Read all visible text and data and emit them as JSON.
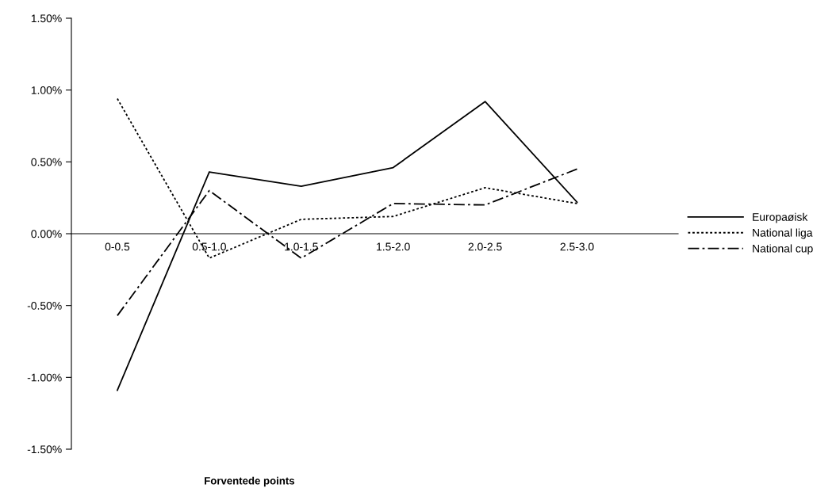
{
  "chart_data": {
    "type": "line",
    "annotations": [
      "Forventede points"
    ],
    "categories": [
      "0-0.5",
      "0.5-1.0",
      "1.0-1.5",
      "1.5-2.0",
      "2.0-2.5",
      "2.5-3.0"
    ],
    "series": [
      {
        "name": "Europaøisk",
        "color": "#000000",
        "line_style": "solid",
        "values": [
          -1.09,
          0.43,
          0.33,
          0.46,
          0.92,
          0.22
        ]
      },
      {
        "name": "National liga",
        "color": "#000000",
        "line_style": "dotted",
        "values": [
          0.94,
          -0.17,
          0.1,
          0.12,
          0.32,
          0.21
        ]
      },
      {
        "name": "National cup",
        "color": "#000000",
        "line_style": "dashdot",
        "values": [
          -0.57,
          0.3,
          -0.17,
          0.21,
          0.2,
          0.45
        ]
      }
    ],
    "ylim": [
      -1.5,
      1.5
    ],
    "yticks": [
      {
        "value": -1.5,
        "label": "-1.50%"
      },
      {
        "value": -1,
        "label": "-1.00%"
      },
      {
        "value": -0.5,
        "label": "-0.50%"
      },
      {
        "value": 0,
        "label": "0.00%"
      },
      {
        "value": 0.5,
        "label": "0.50%"
      },
      {
        "value": 1,
        "label": "1.00%"
      },
      {
        "value": 1.5,
        "label": "1.50%"
      }
    ],
    "grid": false,
    "legend": "right",
    "marker": "none"
  }
}
